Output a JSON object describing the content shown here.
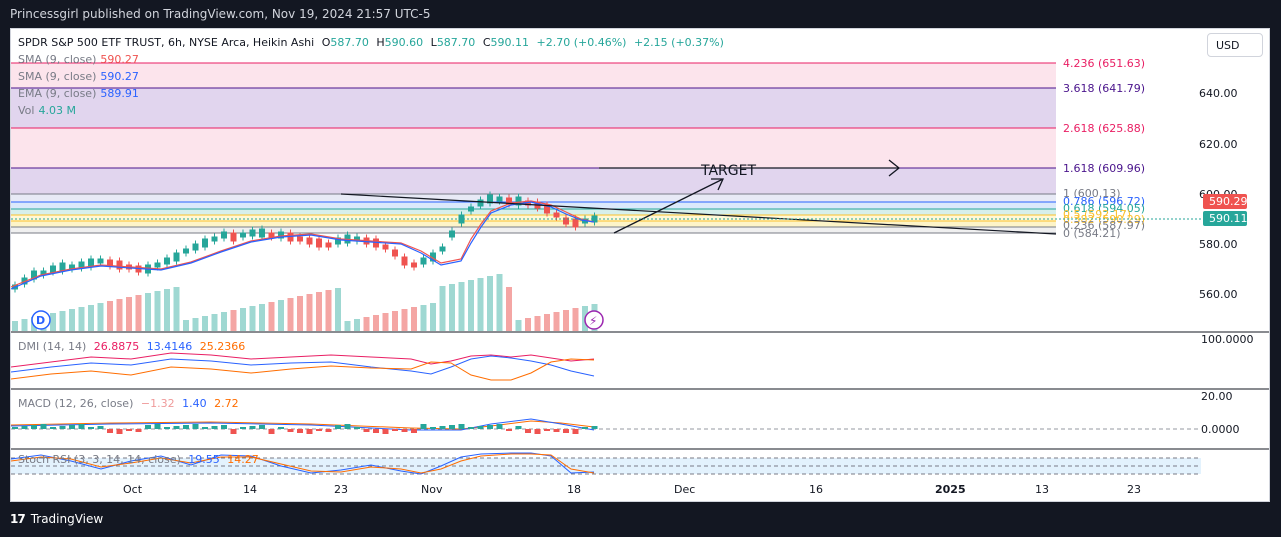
{
  "header": {
    "published_line": "Princessgirl published on TradingView.com, Nov 19, 2024 21:57 UTC-5"
  },
  "symbol": {
    "title": "SPDR S&P 500 ETF TRUST, 6h, NYSE Arca, Heikin Ashi",
    "o_label": "O",
    "o_value": "587.70",
    "h_label": "H",
    "h_value": "590.60",
    "l_label": "L",
    "l_value": "587.70",
    "c_label": "C",
    "c_value": "590.11",
    "change": "+2.70 (+0.46%)",
    "change2": "+2.15 (+0.37%)"
  },
  "indicators": {
    "sma1_label": "SMA (9, close)",
    "sma1_value": "590.27",
    "sma2_label": "SMA (9, close)",
    "sma2_value": "590.27",
    "ema_label": "EMA (9, close)",
    "ema_value": "589.91",
    "vol_label": "Vol",
    "vol_value": "4.03 M"
  },
  "currency_button": "USD",
  "price_axis": {
    "ticks": [
      "640.00",
      "620.00",
      "600.00",
      "580.00",
      "560.00"
    ],
    "current_red": "590.29",
    "current_green": "590.11"
  },
  "fib_levels": [
    {
      "label": "4.236 (651.63)",
      "color": "#e91e63"
    },
    {
      "label": "3.618 (641.79)",
      "color": "#4a148c"
    },
    {
      "label": "2.618 (625.88)",
      "color": "#e91e63"
    },
    {
      "label": "1.618 (609.96)",
      "color": "#4a148c"
    },
    {
      "label": "1 (600.13)",
      "color": "#787b86"
    },
    {
      "label": "0.786 (596.72)",
      "color": "#2962ff"
    },
    {
      "label": "0.618 (594.05)",
      "color": "#26a69a"
    },
    {
      "label": "0.5 (592.17)",
      "color": "#fbc02d"
    },
    {
      "label": "0.382 (590.29)",
      "color": "#fbc02d"
    },
    {
      "label": "0.236 (587.97)",
      "color": "#787b86"
    },
    {
      "label": "0 (584.21)",
      "color": "#787b86"
    }
  ],
  "annotation": {
    "target": "TARGET"
  },
  "dmi": {
    "label": "DMI (14, 14)",
    "v1": "26.8875",
    "v2": "13.4146",
    "v3": "25.2366",
    "axis": "100.0000"
  },
  "macd": {
    "label": "MACD (12, 26, close)",
    "v1": "−1.32",
    "v2": "1.40",
    "v3": "2.72",
    "axis_top": "20.00",
    "axis_zero": "0.0000"
  },
  "stoch": {
    "label": "Stoch RSI (3, 3, 14, 14, close)",
    "v1": "19.55",
    "v2": "14.27"
  },
  "time_axis": [
    "Oct",
    "14",
    "23",
    "Nov",
    "18",
    "Dec",
    "16",
    "2025",
    "13",
    "23"
  ],
  "footer": {
    "brand": "TradingView"
  },
  "colors": {
    "up": "#26a69a",
    "down": "#ef5350",
    "sma": "#ef5350",
    "ema": "#2962ff"
  }
}
